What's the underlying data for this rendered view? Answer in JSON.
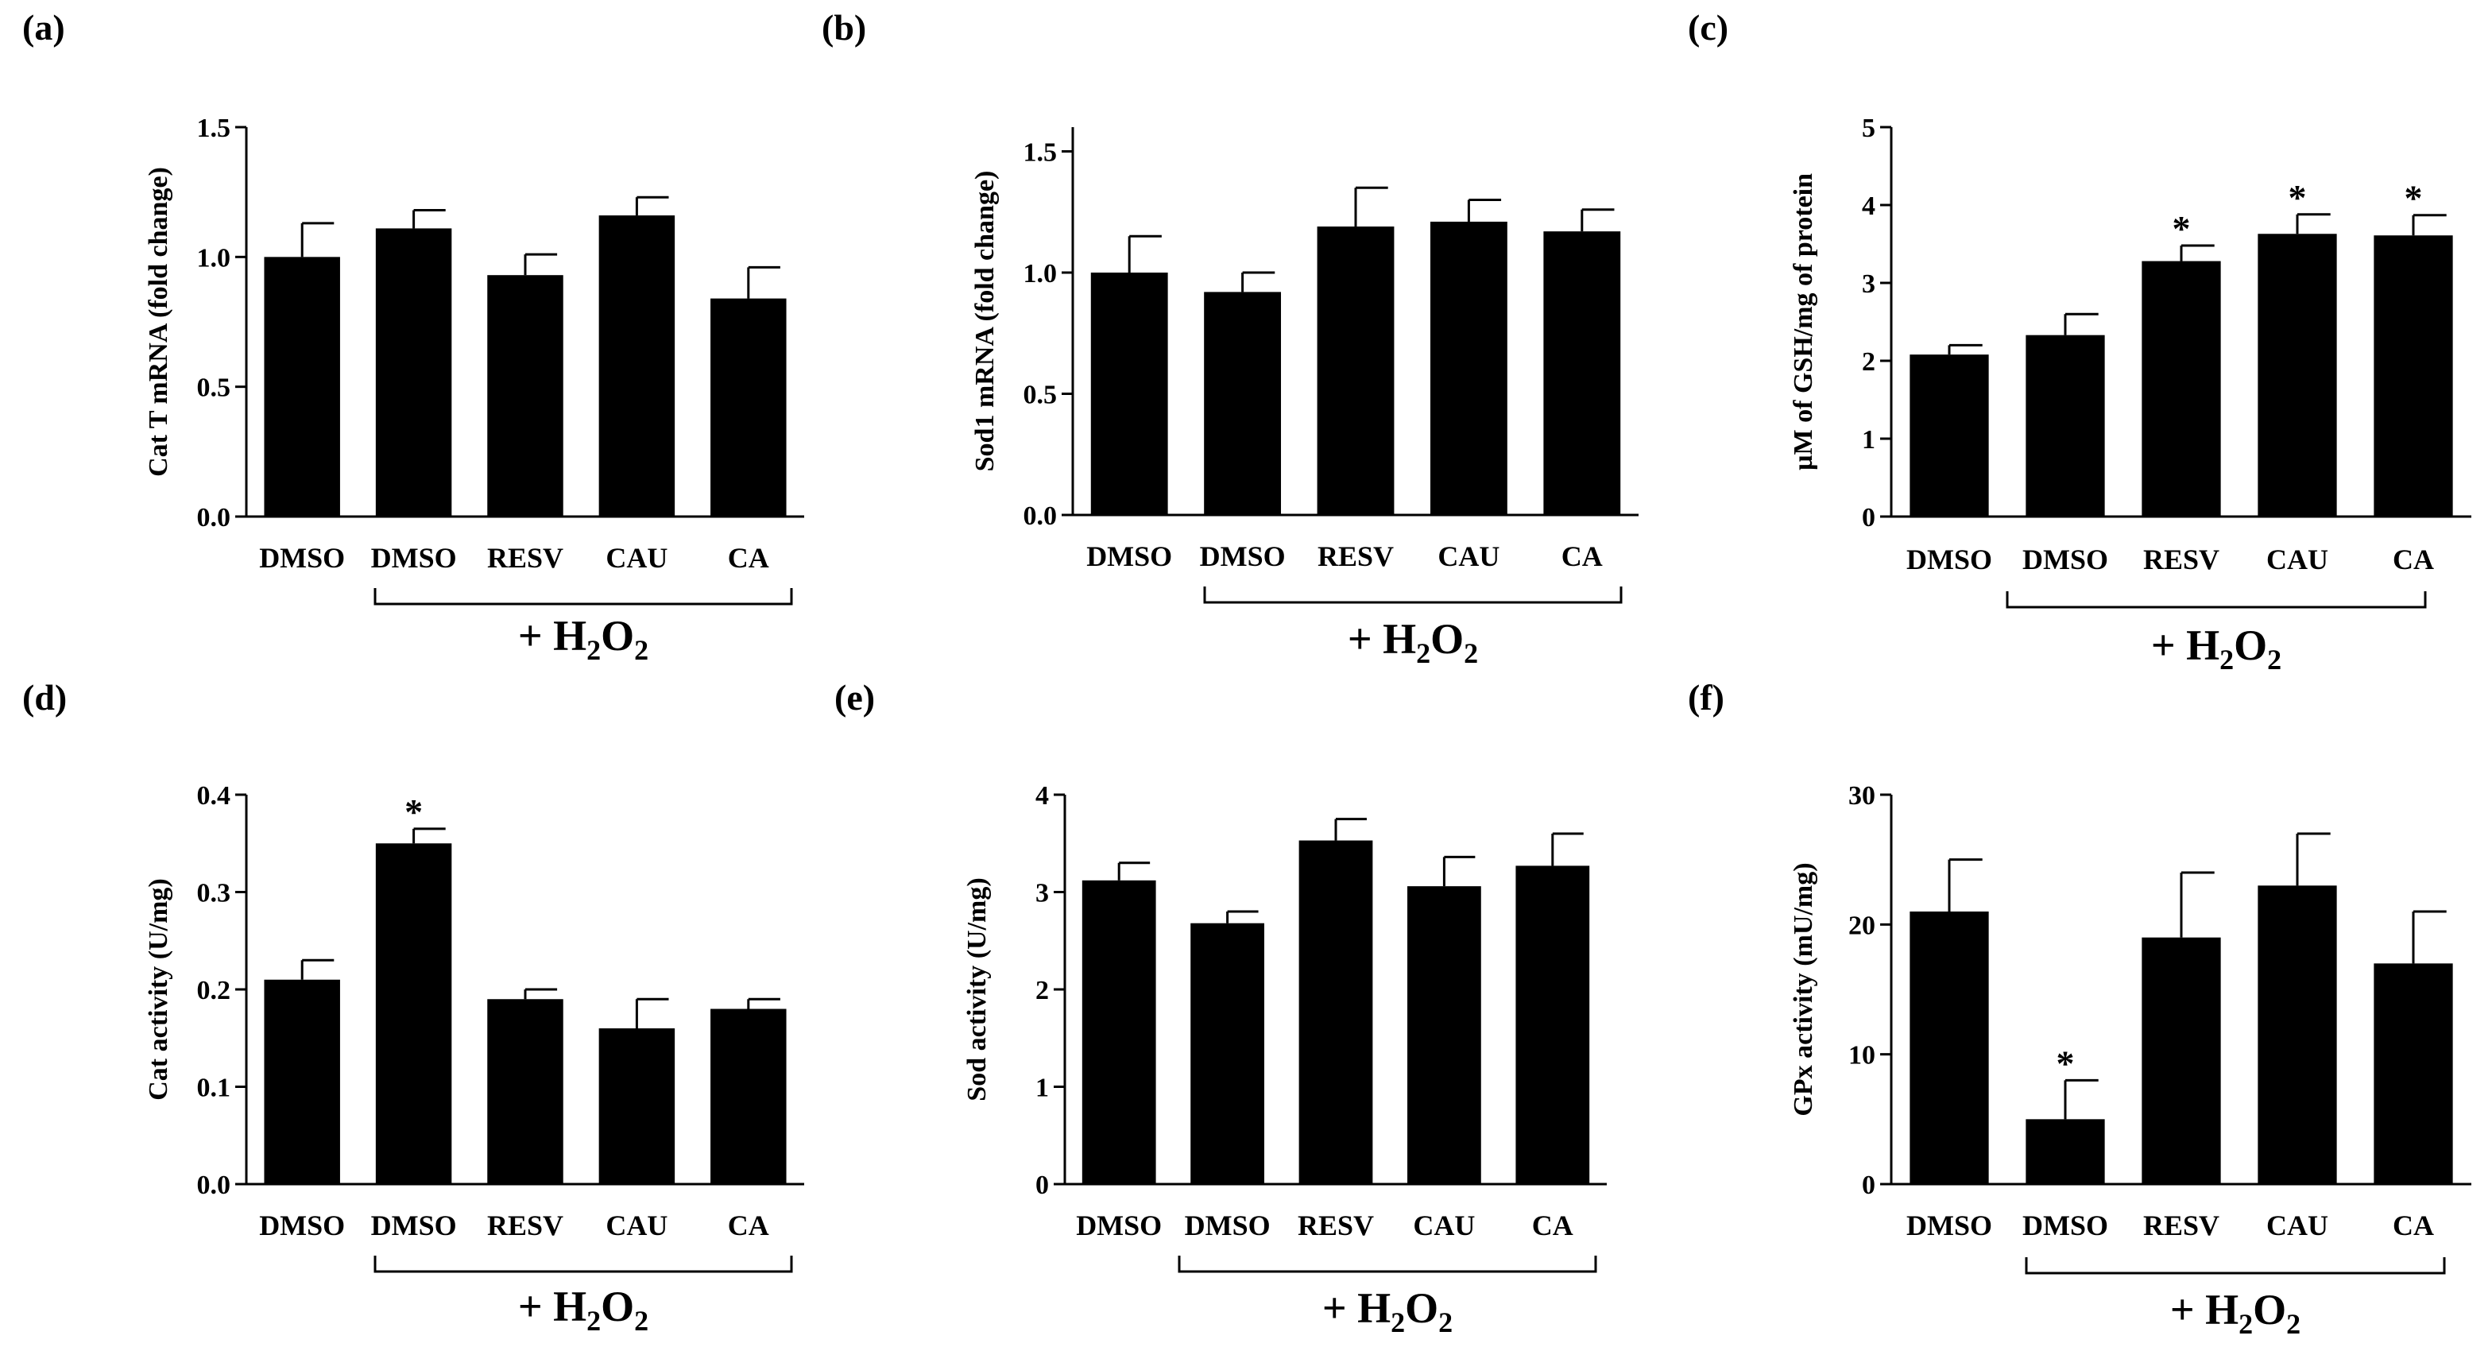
{
  "figure": {
    "treatment_prefix": "+ ",
    "treatment_main": "H",
    "treatment_sub1": "2",
    "treatment_mid": "O",
    "treatment_sub2": "2",
    "bar_color": "#000000"
  },
  "chart_data": [
    {
      "panel": "(a)",
      "type": "bar",
      "categories": [
        "DMSO",
        "DMSO",
        "RESV",
        "CAU",
        "CA"
      ],
      "values": [
        1.0,
        1.11,
        0.93,
        1.16,
        0.84
      ],
      "errors": [
        0.13,
        0.07,
        0.08,
        0.07,
        0.12
      ],
      "significance": [
        "",
        "",
        "",
        "",
        ""
      ],
      "ylabel": "Cat T mRNA (fold change)",
      "ylim": [
        0,
        1.5
      ],
      "yticks": [
        "0.0",
        "0.5",
        "1.0",
        "1.5"
      ],
      "bracket_label": "+ H2O2"
    },
    {
      "panel": "(b)",
      "type": "bar",
      "categories": [
        "DMSO",
        "DMSO",
        "RESV",
        "CAU",
        "CA"
      ],
      "values": [
        1.0,
        0.92,
        1.19,
        1.21,
        1.17
      ],
      "errors": [
        0.15,
        0.08,
        0.16,
        0.09,
        0.09
      ],
      "significance": [
        "",
        "",
        "",
        "",
        ""
      ],
      "ylabel": "Sod1 mRNA (fold change)",
      "ylim": [
        0,
        1.6
      ],
      "yticks": [
        "0.0",
        "0.5",
        "1.0",
        "1.5"
      ],
      "bracket_label": "+ H2O2"
    },
    {
      "panel": "(c)",
      "type": "bar",
      "categories": [
        "DMSO",
        "DMSO",
        "RESV",
        "CAU",
        "CA"
      ],
      "values": [
        2.08,
        2.33,
        3.28,
        3.63,
        3.61
      ],
      "errors": [
        0.12,
        0.27,
        0.2,
        0.25,
        0.26
      ],
      "significance": [
        "",
        "",
        "*",
        "*",
        "*"
      ],
      "ylabel": "µM of GSH/mg of protein",
      "ylim": [
        0,
        5
      ],
      "yticks": [
        "0",
        "1",
        "2",
        "3",
        "4",
        "5"
      ],
      "bracket_label": "+ H2O2"
    },
    {
      "panel": "(d)",
      "type": "bar",
      "categories": [
        "DMSO",
        "DMSO",
        "RESV",
        "CAU",
        "CA"
      ],
      "values": [
        0.21,
        0.35,
        0.19,
        0.16,
        0.18
      ],
      "errors": [
        0.02,
        0.015,
        0.01,
        0.03,
        0.01
      ],
      "significance": [
        "",
        "*",
        "",
        "",
        ""
      ],
      "ylabel": "Cat activity (U/mg)",
      "ylim": [
        0,
        0.4
      ],
      "yticks": [
        "0.0",
        "0.1",
        "0.2",
        "0.3",
        "0.4"
      ],
      "bracket_label": "+ H2O2"
    },
    {
      "panel": "(e)",
      "type": "bar",
      "categories": [
        "DMSO",
        "DMSO",
        "RESV",
        "CAU",
        "CA"
      ],
      "values": [
        3.12,
        2.68,
        3.53,
        3.06,
        3.27
      ],
      "errors": [
        0.18,
        0.12,
        0.22,
        0.3,
        0.33
      ],
      "significance": [
        "",
        "",
        "",
        "",
        ""
      ],
      "ylabel": "Sod activity (U/mg)",
      "ylim": [
        0,
        4
      ],
      "yticks": [
        "0",
        "1",
        "2",
        "3",
        "4"
      ],
      "bracket_label": "+ H2O2"
    },
    {
      "panel": "(f)",
      "type": "bar",
      "categories": [
        "DMSO",
        "DMSO",
        "RESV",
        "CAU",
        "CA"
      ],
      "values": [
        21,
        5,
        19,
        23,
        17
      ],
      "errors": [
        4,
        3,
        5,
        4,
        4
      ],
      "significance": [
        "",
        "*",
        "",
        "",
        ""
      ],
      "ylabel": "GPx activity (mU/mg)",
      "ylim": [
        0,
        30
      ],
      "yticks": [
        "0",
        "10",
        "20",
        "30"
      ],
      "bracket_label": "+ H2O2"
    }
  ]
}
